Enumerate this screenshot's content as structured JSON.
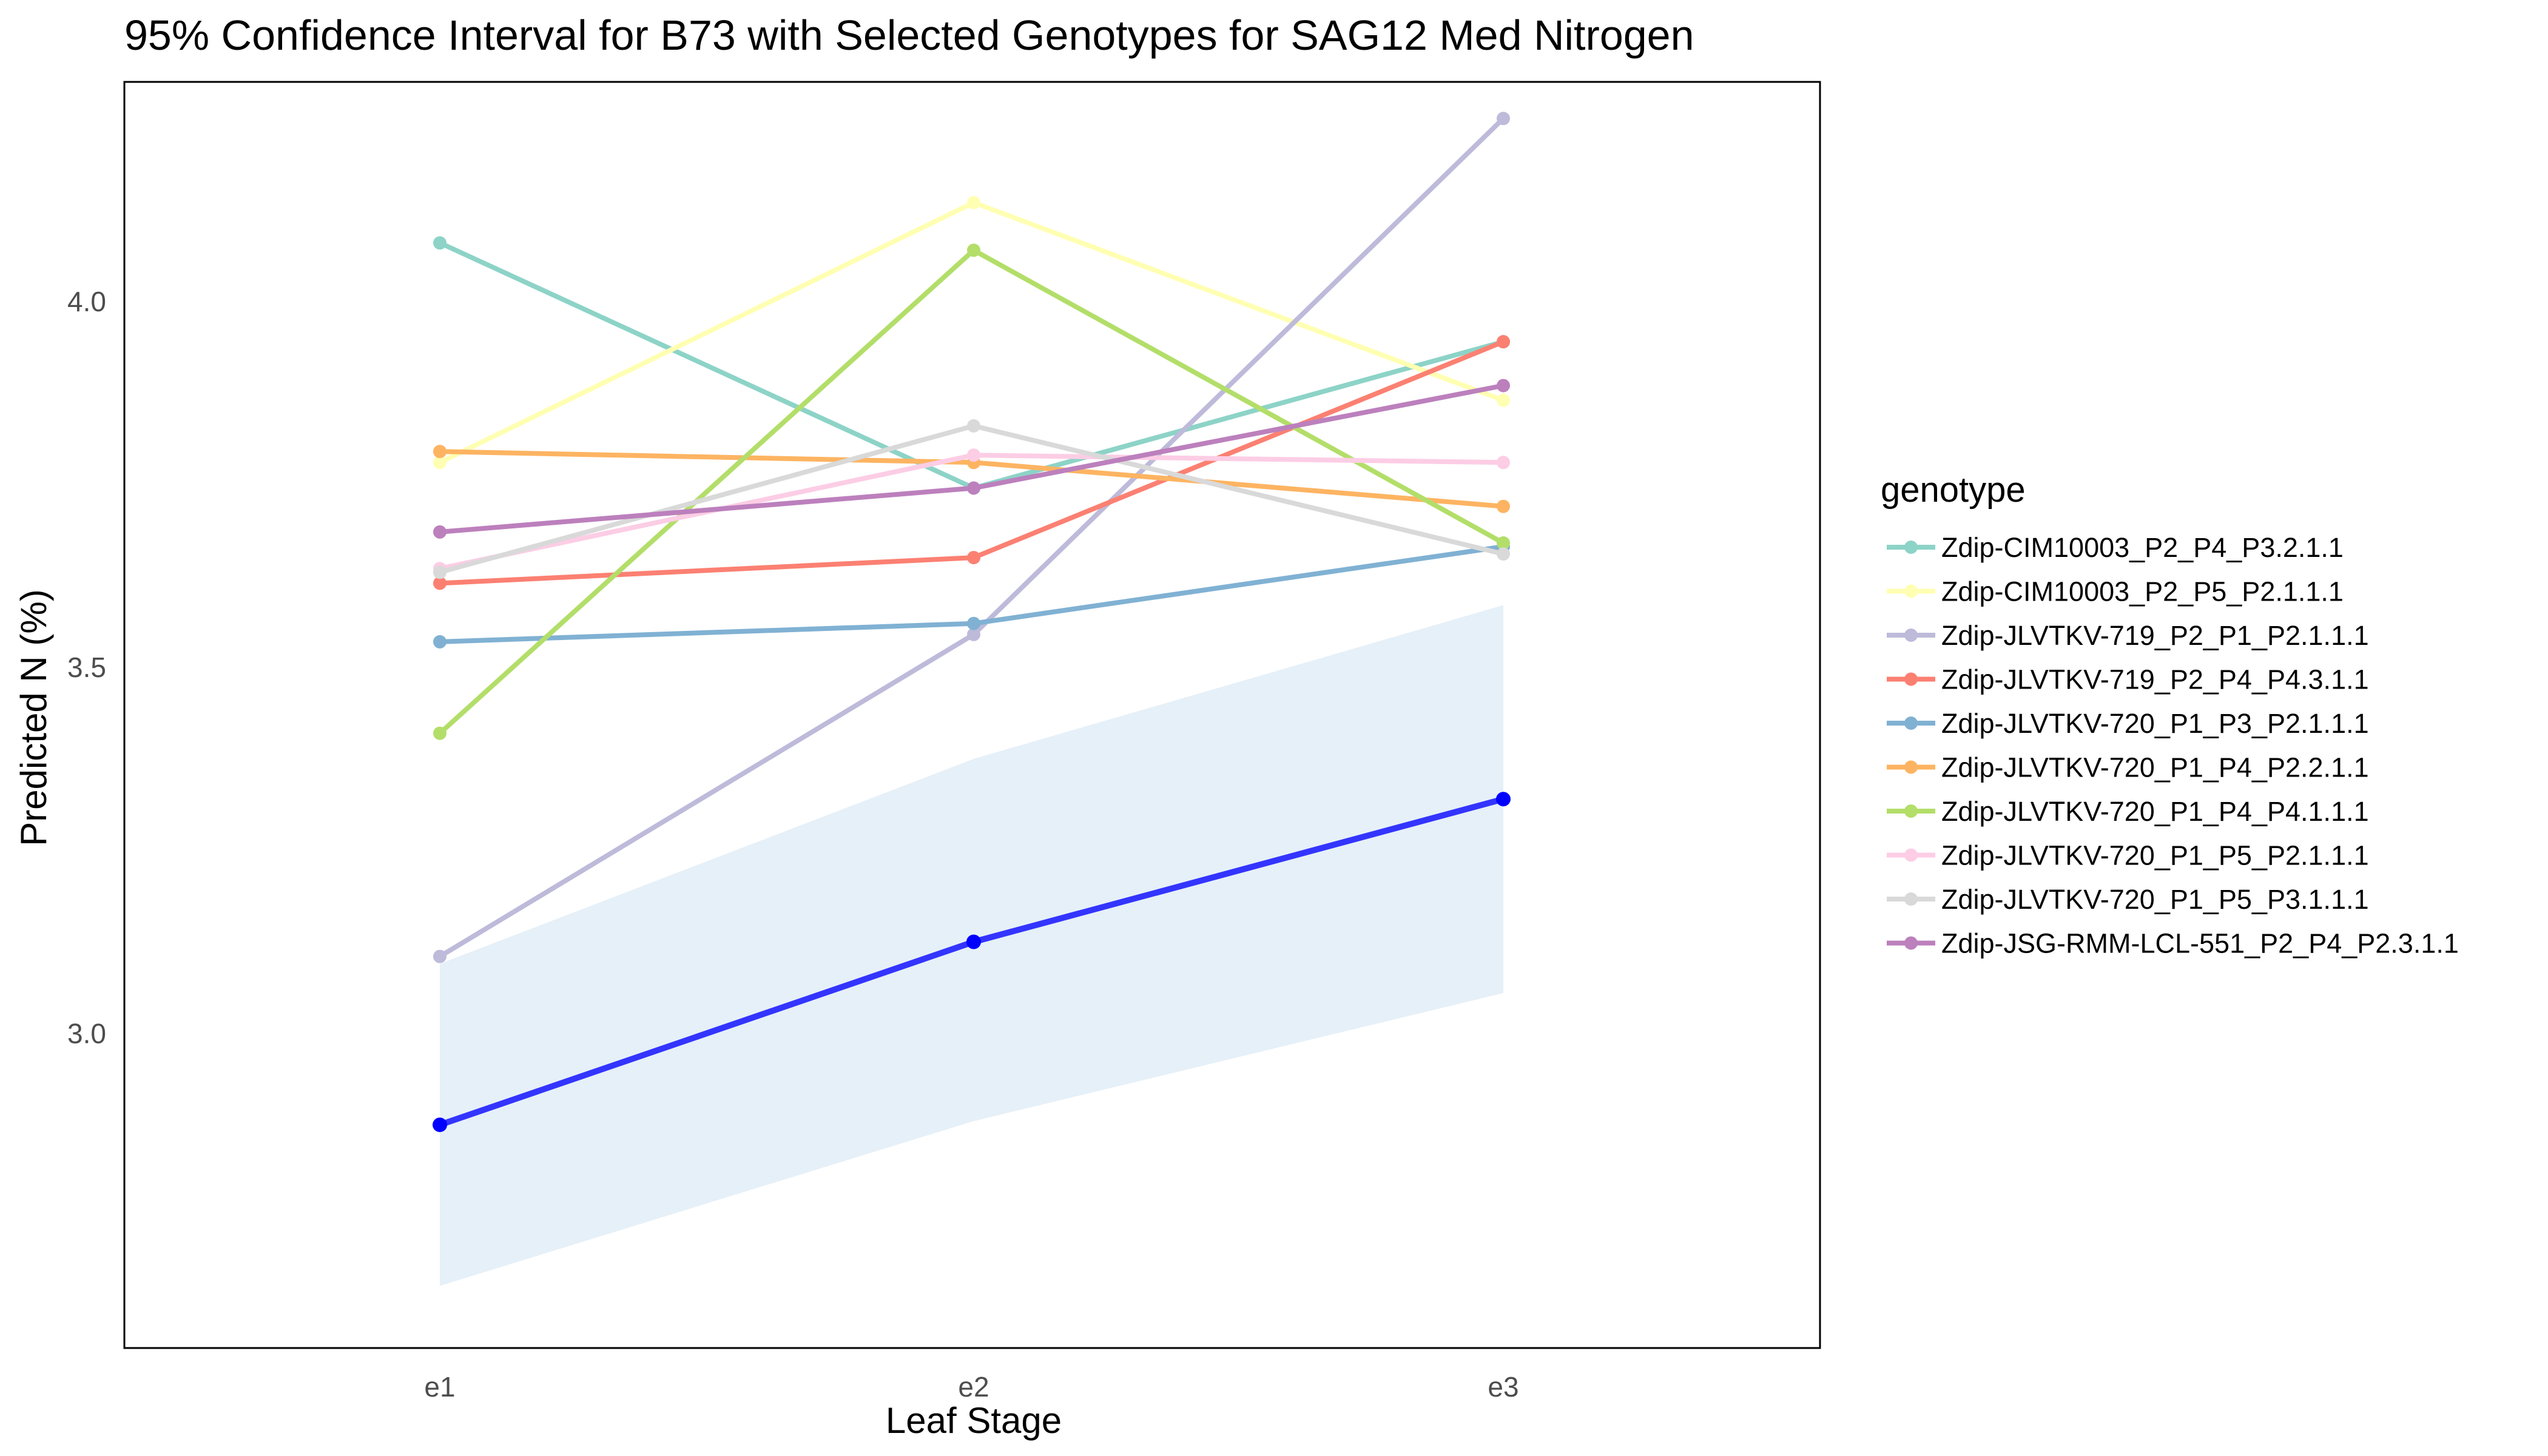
{
  "chart_data": {
    "type": "line",
    "title": "95% Confidence Interval for B73 with Selected Genotypes for SAG12 Med Nitrogen",
    "xlabel": "Leaf Stage",
    "ylabel": "Predicted N (%)",
    "categories": [
      "e1",
      "e2",
      "e3"
    ],
    "ylim": [
      2.57,
      4.3
    ],
    "yticks": [
      3.0,
      3.5,
      4.0
    ],
    "ytick_labels": [
      "3.0",
      "3.5",
      "4.0"
    ],
    "grid": false,
    "legend": {
      "title": "genotype",
      "position": "right"
    },
    "b73": {
      "color": "#0000ff",
      "values": [
        2.875,
        3.125,
        3.32
      ],
      "ci_lower": [
        2.655,
        2.88,
        3.055
      ],
      "ci_upper": [
        3.095,
        3.375,
        3.585
      ],
      "ci_fill": "#dbe9f5"
    },
    "series": [
      {
        "name": "Zdip-CIM10003_P2_P4_P3.2.1.1",
        "color": "#8dd3c7",
        "values": [
          4.08,
          3.745,
          3.945
        ]
      },
      {
        "name": "Zdip-CIM10003_P2_P5_P2.1.1.1",
        "color": "#ffffb3",
        "values": [
          3.78,
          4.135,
          3.865
        ]
      },
      {
        "name": "Zdip-JLVTKV-719_P2_P1_P2.1.1.1",
        "color": "#bebada",
        "values": [
          3.105,
          3.545,
          4.25
        ]
      },
      {
        "name": "Zdip-JLVTKV-719_P2_P4_P4.3.1.1",
        "color": "#fb8072",
        "values": [
          3.615,
          3.65,
          3.945
        ]
      },
      {
        "name": "Zdip-JLVTKV-720_P1_P3_P2.1.1.1",
        "color": "#80b1d3",
        "values": [
          3.535,
          3.56,
          3.665
        ]
      },
      {
        "name": "Zdip-JLVTKV-720_P1_P4_P2.2.1.1",
        "color": "#fdb462",
        "values": [
          3.795,
          3.78,
          3.72
        ]
      },
      {
        "name": "Zdip-JLVTKV-720_P1_P4_P4.1.1.1",
        "color": "#b3de69",
        "values": [
          3.41,
          4.07,
          3.67
        ]
      },
      {
        "name": "Zdip-JLVTKV-720_P1_P5_P2.1.1.1",
        "color": "#fccde5",
        "values": [
          3.635,
          3.79,
          3.78
        ]
      },
      {
        "name": "Zdip-JLVTKV-720_P1_P5_P3.1.1.1",
        "color": "#d9d9d9",
        "values": [
          3.63,
          3.83,
          3.655
        ]
      },
      {
        "name": "Zdip-JSG-RMM-LCL-551_P2_P4_P2.3.1.1",
        "color": "#bc80bd",
        "values": [
          3.685,
          3.745,
          3.885
        ]
      }
    ]
  }
}
